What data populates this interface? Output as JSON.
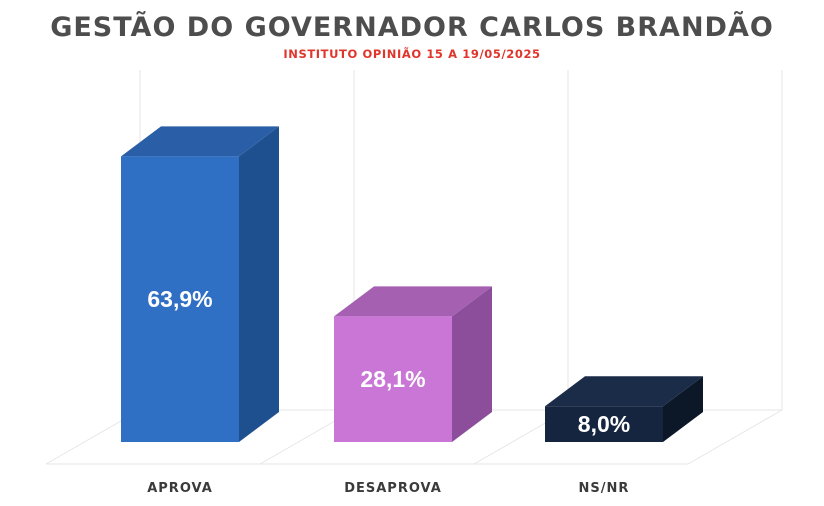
{
  "header": {
    "title": "GESTÃO DO GOVERNADOR CARLOS BRANDÃO",
    "subtitle": "INSTITUTO OPINIÃO 15 A 19/05/2025"
  },
  "chart_data": {
    "type": "bar",
    "style": "3d-column",
    "categories": [
      "APROVA",
      "DESAPROVA",
      "NS/NR"
    ],
    "values": [
      63.9,
      28.1,
      8.0
    ],
    "value_labels": [
      "63,9%",
      "28,1%",
      "8,0%"
    ],
    "ylim": [
      0,
      100
    ],
    "grid": true,
    "legend": "none"
  },
  "colors": {
    "title": "#4d4d4d",
    "subtitle": "#e0352b",
    "bars": [
      {
        "front": "#2f6fc4",
        "side": "#1e4f8f",
        "top": "#2a5fa8"
      },
      {
        "front": "#c976d6",
        "side": "#8c4e9a",
        "top": "#a560b2"
      },
      {
        "front": "#152540",
        "side": "#0c1728",
        "top": "#1a2c48"
      }
    ],
    "grid": "#e6e6e6"
  }
}
